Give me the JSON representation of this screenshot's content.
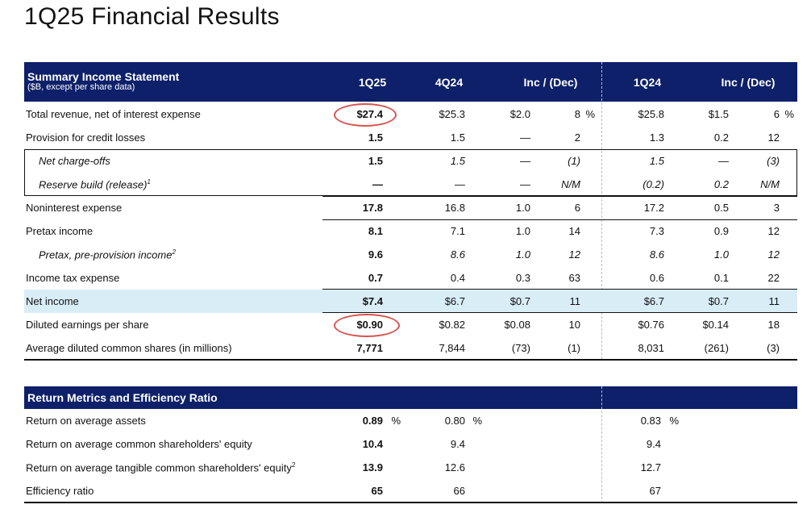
{
  "page_title": "1Q25 Financial Results",
  "summary": {
    "title": "Summary Income Statement",
    "subtitle": "($B, except per share data)",
    "headers": [
      "1Q25",
      "4Q24",
      "Inc / (Dec)",
      "1Q24",
      "Inc / (Dec)"
    ],
    "rows": [
      {
        "label": "Total revenue, net of interest expense",
        "sup": "",
        "q125": "$27.4",
        "q424": "$25.3",
        "d1": "$2.0",
        "p1": "8",
        "pct1": "%",
        "q124": "$25.8",
        "d2": "$1.5",
        "p2": "6",
        "pct2": "%"
      },
      {
        "label": "Provision for credit losses",
        "sup": "",
        "q125": "1.5",
        "q424": "1.5",
        "d1": "—",
        "p1": "2",
        "pct1": "",
        "q124": "1.3",
        "d2": "0.2",
        "p2": "12",
        "pct2": ""
      },
      {
        "label": "Net charge-offs",
        "sup": "",
        "q125": "1.5",
        "q424": "1.5",
        "d1": "—",
        "p1": "(1)",
        "pct1": "",
        "q124": "1.5",
        "d2": "—",
        "p2": "(3)",
        "pct2": ""
      },
      {
        "label": "Reserve build (release)",
        "sup": "1",
        "q125": "—",
        "q424": "—",
        "d1": "—",
        "p1": "N/M",
        "pct1": "",
        "q124": "(0.2)",
        "d2": "0.2",
        "p2": "N/M",
        "pct2": ""
      },
      {
        "label": "Noninterest expense",
        "sup": "",
        "q125": "17.8",
        "q424": "16.8",
        "d1": "1.0",
        "p1": "6",
        "pct1": "",
        "q124": "17.2",
        "d2": "0.5",
        "p2": "3",
        "pct2": ""
      },
      {
        "label": "Pretax income",
        "sup": "",
        "q125": "8.1",
        "q424": "7.1",
        "d1": "1.0",
        "p1": "14",
        "pct1": "",
        "q124": "7.3",
        "d2": "0.9",
        "p2": "12",
        "pct2": ""
      },
      {
        "label": "Pretax, pre-provision income",
        "sup": "2",
        "q125": "9.6",
        "q424": "8.6",
        "d1": "1.0",
        "p1": "12",
        "pct1": "",
        "q124": "8.6",
        "d2": "1.0",
        "p2": "12",
        "pct2": ""
      },
      {
        "label": "Income tax expense",
        "sup": "",
        "q125": "0.7",
        "q424": "0.4",
        "d1": "0.3",
        "p1": "63",
        "pct1": "",
        "q124": "0.6",
        "d2": "0.1",
        "p2": "22",
        "pct2": ""
      },
      {
        "label": "Net income",
        "sup": "",
        "q125": "$7.4",
        "q424": "$6.7",
        "d1": "$0.7",
        "p1": "11",
        "pct1": "",
        "q124": "$6.7",
        "d2": "$0.7",
        "p2": "11",
        "pct2": ""
      },
      {
        "label": "Diluted earnings per share",
        "sup": "",
        "q125": "$0.90",
        "q424": "$0.82",
        "d1": "$0.08",
        "p1": "10",
        "pct1": "",
        "q124": "$0.76",
        "d2": "$0.14",
        "p2": "18",
        "pct2": ""
      },
      {
        "label": "Average diluted common shares (in millions)",
        "sup": "",
        "q125": "7,771",
        "q424": "7,844",
        "d1": "(73)",
        "p1": "(1)",
        "pct1": "",
        "q124": "8,031",
        "d2": "(261)",
        "p2": "(3)",
        "pct2": ""
      }
    ]
  },
  "returns": {
    "title": "Return Metrics and Efficiency Ratio",
    "rows": [
      {
        "label": "Return on average assets",
        "sup": "",
        "q125": "0.89",
        "u1": "%",
        "q424": "0.80",
        "u2": "%",
        "q124": "0.83",
        "u3": "%"
      },
      {
        "label": "Return on average common shareholders' equity",
        "sup": "",
        "q125": "10.4",
        "u1": "",
        "q424": "9.4",
        "u2": "",
        "q124": "9.4",
        "u3": ""
      },
      {
        "label": "Return on average tangible common shareholders' equity",
        "sup": "2",
        "q125": "13.9",
        "u1": "",
        "q424": "12.6",
        "u2": "",
        "q124": "12.7",
        "u3": ""
      },
      {
        "label": "Efficiency ratio",
        "sup": "",
        "q125": "65",
        "u1": "",
        "q424": "66",
        "u2": "",
        "q124": "67",
        "u3": ""
      }
    ]
  },
  "colors": {
    "header_bg": "#0d2069",
    "highlight_row": "#d9edf7",
    "circle": "#d9534f"
  }
}
